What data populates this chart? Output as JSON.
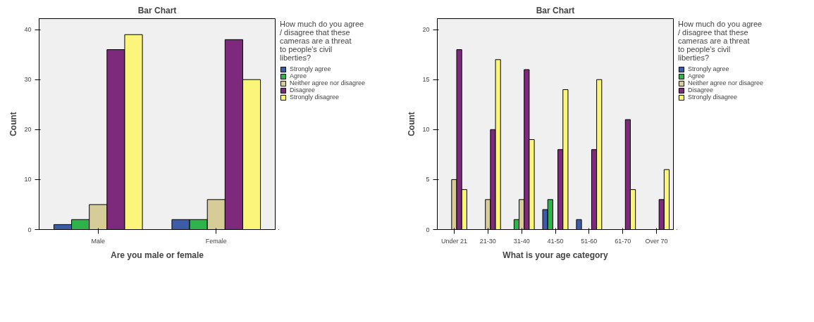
{
  "chart_data": [
    {
      "type": "bar",
      "title": "Bar Chart",
      "xlabel": "Are you male or female",
      "ylabel": "Count",
      "legend_title": "How much do you agree / disagree that these cameras are a threat to people's civil liberties?",
      "legend": "right",
      "grid": false,
      "categories": [
        "Male",
        "Female"
      ],
      "ylim": [
        0,
        42.2
      ],
      "yticks": [
        0,
        10,
        20,
        30,
        40
      ],
      "series": [
        {
          "name": "Strongly agree",
          "color": "#3d5ba9",
          "values": [
            1,
            2
          ]
        },
        {
          "name": "Agree",
          "color": "#2db34a",
          "values": [
            2,
            2
          ]
        },
        {
          "name": "Neither agree nor disagree",
          "color": "#d5cc98",
          "values": [
            5,
            6
          ]
        },
        {
          "name": "Disagree",
          "color": "#7d2a7c",
          "values": [
            36,
            38
          ]
        },
        {
          "name": "Strongly disagree",
          "color": "#fbf67b",
          "values": [
            39,
            30
          ]
        }
      ]
    },
    {
      "type": "bar",
      "title": "Bar Chart",
      "xlabel": "What is your age category",
      "ylabel": "Count",
      "legend_title": "How much do you agree / disagree that these cameras are a threat to people's civil liberties?",
      "legend": "right",
      "grid": false,
      "categories": [
        "Under 21",
        "21-30",
        "31-40",
        "41-50",
        "51-60",
        "61-70",
        "Over 70"
      ],
      "ylim": [
        0,
        21.1
      ],
      "yticks": [
        0,
        5,
        10,
        15,
        20
      ],
      "series": [
        {
          "name": "Strongly agree",
          "color": "#3d5ba9",
          "values": [
            null,
            null,
            null,
            2,
            1,
            null,
            null
          ]
        },
        {
          "name": "Agree",
          "color": "#2db34a",
          "values": [
            null,
            null,
            1,
            3,
            null,
            null,
            null
          ]
        },
        {
          "name": "Neither agree nor disagree",
          "color": "#d5cc98",
          "values": [
            5,
            3,
            3,
            null,
            null,
            null,
            null
          ]
        },
        {
          "name": "Disagree",
          "color": "#7d2a7c",
          "values": [
            18,
            10,
            16,
            8,
            8,
            11,
            3
          ]
        },
        {
          "name": "Strongly disagree",
          "color": "#fbf67b",
          "values": [
            4,
            17,
            9,
            14,
            15,
            4,
            6
          ]
        }
      ]
    }
  ]
}
